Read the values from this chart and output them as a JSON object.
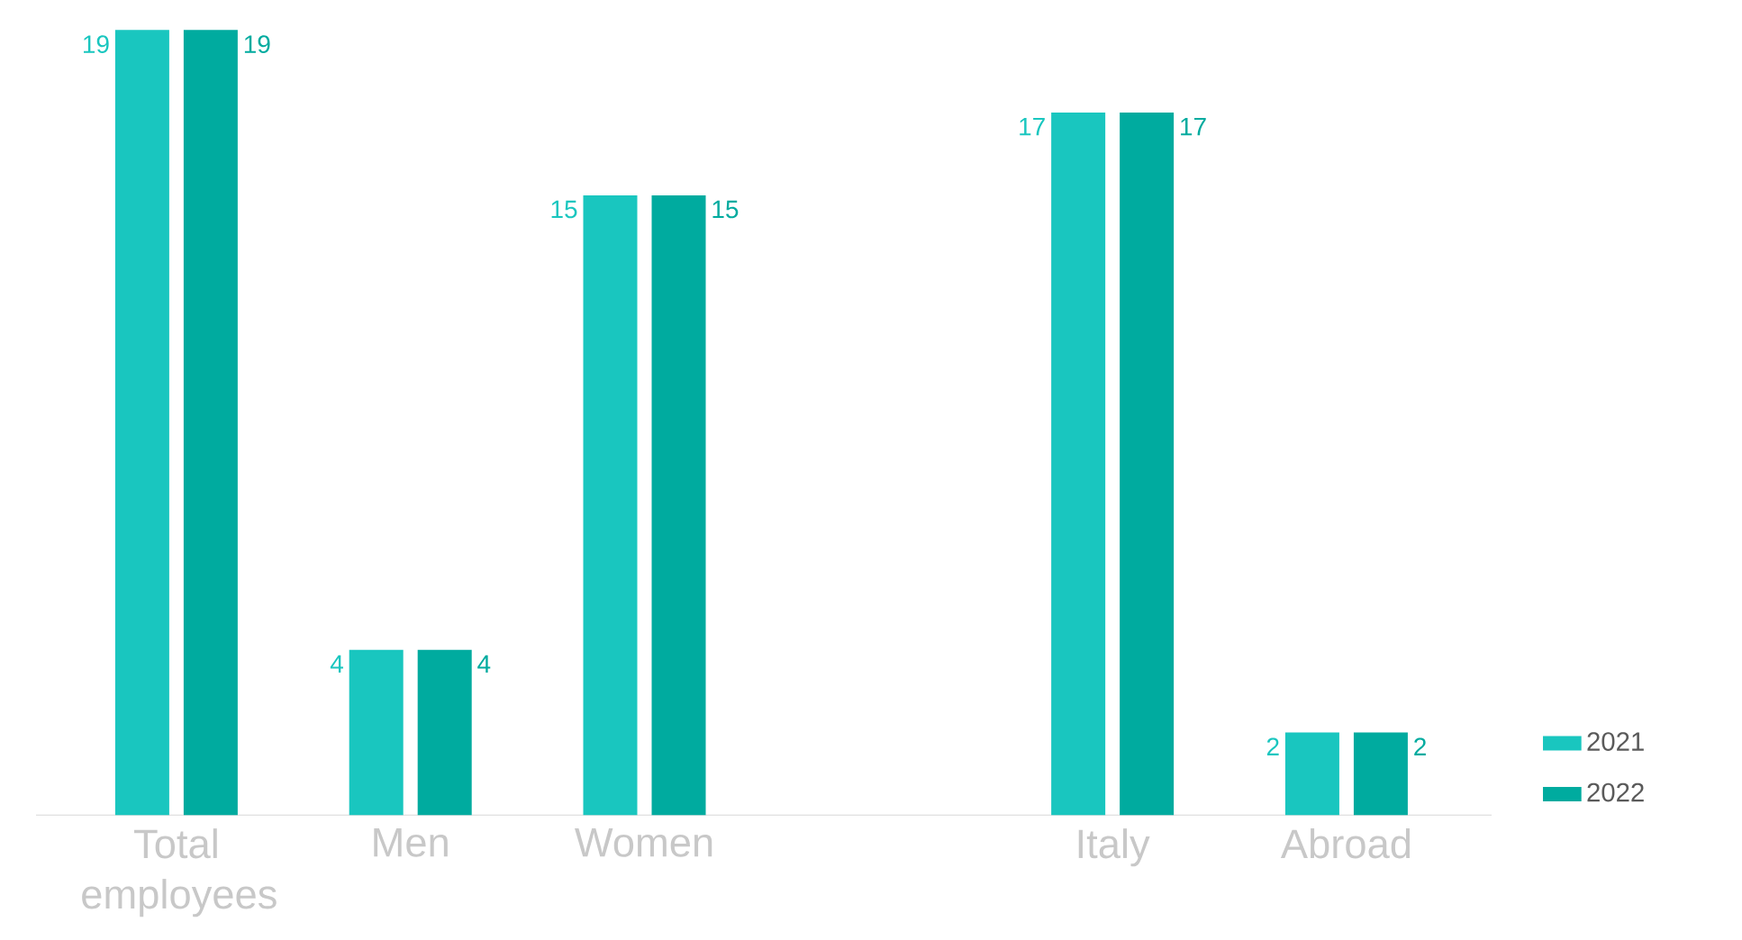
{
  "chart_data": {
    "type": "bar",
    "categories": [
      "Total employees",
      "Men",
      "Women",
      null,
      "Italy",
      "Abroad"
    ],
    "series": [
      {
        "name": "2021",
        "color": "#19c6bf",
        "values": [
          19,
          4,
          15,
          null,
          17,
          2
        ]
      },
      {
        "name": "2022",
        "color": "#00ab9f",
        "values": [
          19,
          4,
          15,
          null,
          17,
          2
        ]
      }
    ],
    "data_labels": true,
    "legend": "bottom right",
    "ylim": [
      0,
      19
    ]
  }
}
